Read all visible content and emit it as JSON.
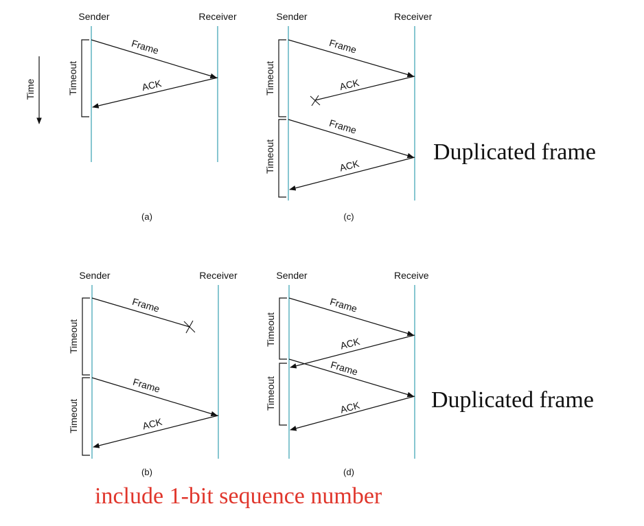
{
  "labels": {
    "sender": "Sender",
    "receiver": "Receiver",
    "receiver_c": "Receiver",
    "receiver_d": "Receive",
    "frame": "Frame",
    "ack": "ACK",
    "timeout": "Timeout",
    "time": "Time"
  },
  "captions": {
    "a": "(a)",
    "b": "(b)",
    "c": "(c)",
    "d": "(d)"
  },
  "notes": {
    "duplicated_c": "Duplicated frame",
    "duplicated_d": "Duplicated frame",
    "sequence": "include 1-bit sequence number"
  },
  "colors": {
    "timeline": "#5fb3c1",
    "emphasis": "#e0362c",
    "ink": "#111111"
  }
}
